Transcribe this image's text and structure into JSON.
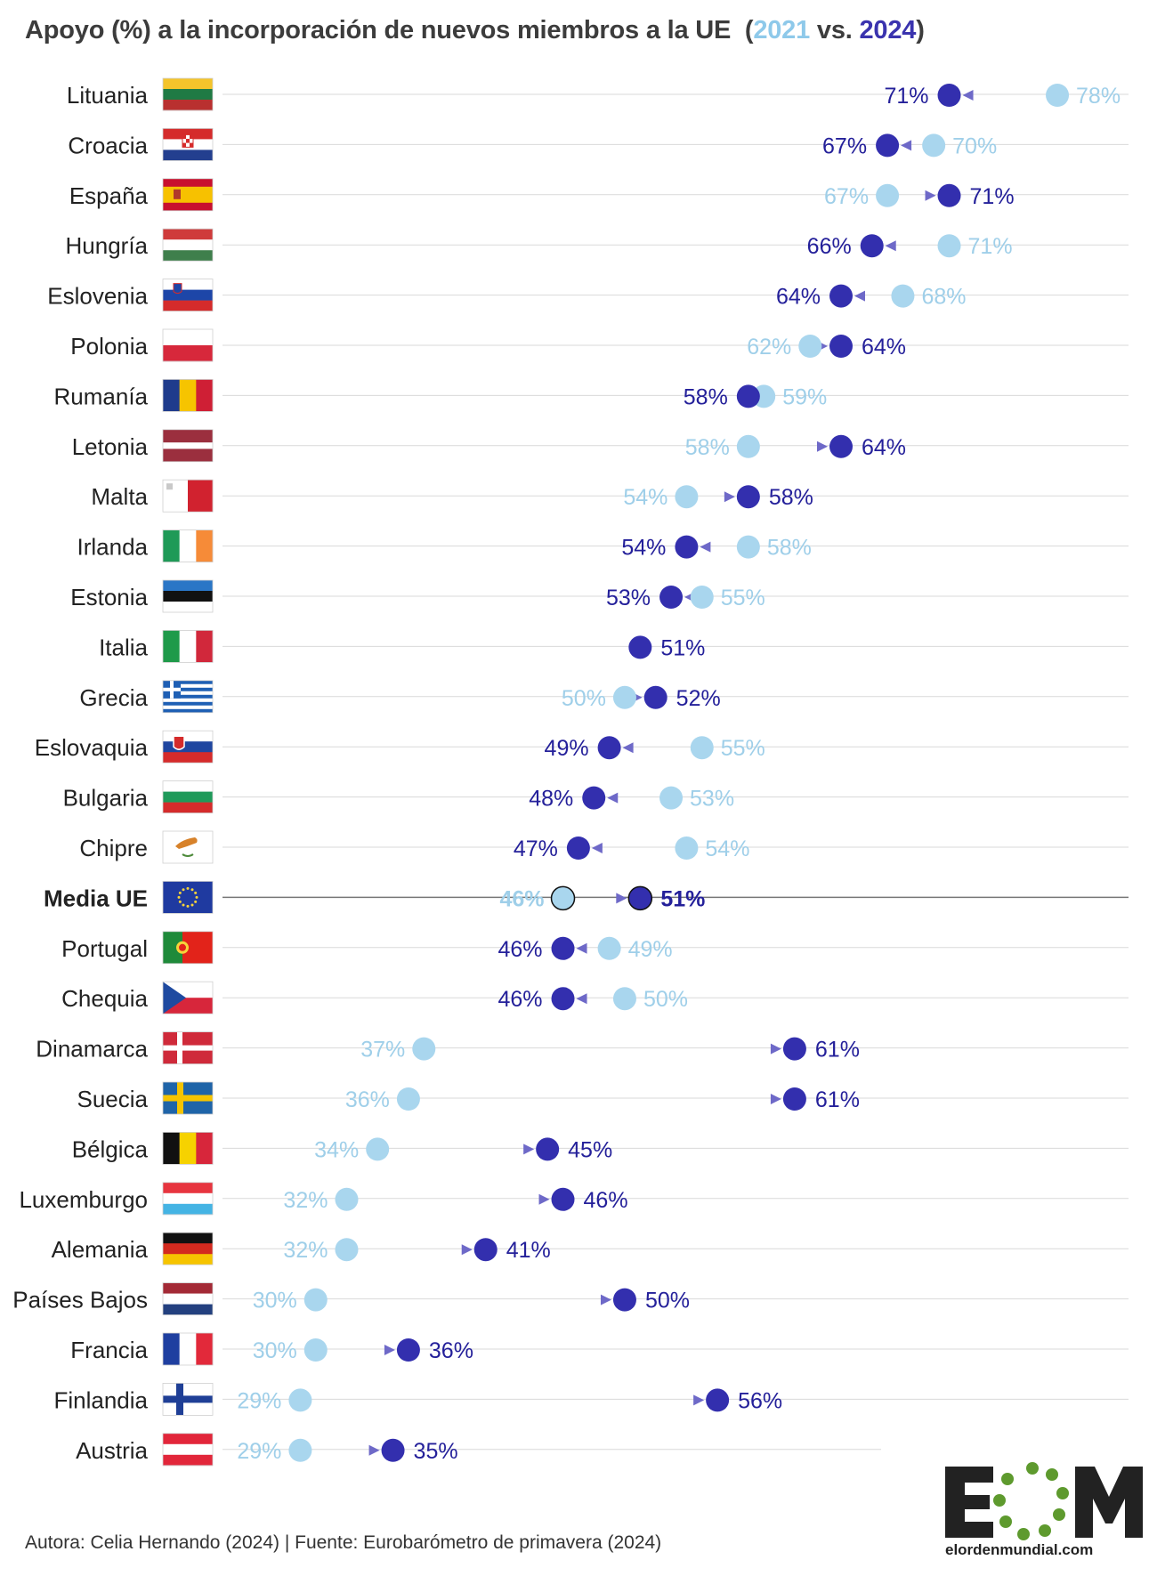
{
  "title": {
    "main": "Apoyo (%) a la incorporación de nuevos miembros a la UE",
    "paren_open": "(",
    "year_a": "2021",
    "vs": " vs. ",
    "year_b": "2024",
    "paren_close": ")"
  },
  "footer": "Autora: Celia Hernando (2024) | Fuente: Eurobarómetro de primavera (2024)",
  "logo": {
    "letters": "EOM",
    "url_text": "elordenmundial.com"
  },
  "colors": {
    "y2021": "#a9d6ee",
    "y2021_label": "#9fcfe9",
    "y2024": "#332fae",
    "y2024_label": "#24209a",
    "arrow": "#6e69c8",
    "grid": "#d9d9d9",
    "average_line": "#777777"
  },
  "chart_data": {
    "type": "dumbbell",
    "unit": "%",
    "series": [
      {
        "name": "2021"
      },
      {
        "name": "2024"
      }
    ],
    "rows": [
      {
        "country": "Lituania",
        "flag": "lithuania",
        "v2021": 78,
        "v2024": 71
      },
      {
        "country": "Croacia",
        "flag": "croatia",
        "v2021": 70,
        "v2024": 67
      },
      {
        "country": "España",
        "flag": "spain",
        "v2021": 67,
        "v2024": 71
      },
      {
        "country": "Hungría",
        "flag": "hungary",
        "v2021": 71,
        "v2024": 66
      },
      {
        "country": "Eslovenia",
        "flag": "slovenia",
        "v2021": 68,
        "v2024": 64
      },
      {
        "country": "Polonia",
        "flag": "poland",
        "v2021": 62,
        "v2024": 64
      },
      {
        "country": "Rumanía",
        "flag": "romania",
        "v2021": 59,
        "v2024": 58
      },
      {
        "country": "Letonia",
        "flag": "latvia",
        "v2021": 58,
        "v2024": 64
      },
      {
        "country": "Malta",
        "flag": "malta",
        "v2021": 54,
        "v2024": 58
      },
      {
        "country": "Irlanda",
        "flag": "ireland",
        "v2021": 58,
        "v2024": 54
      },
      {
        "country": "Estonia",
        "flag": "estonia",
        "v2021": 55,
        "v2024": 53
      },
      {
        "country": "Italia",
        "flag": "italy",
        "v2021": 51,
        "v2024": 51
      },
      {
        "country": "Grecia",
        "flag": "greece",
        "v2021": 50,
        "v2024": 52
      },
      {
        "country": "Eslovaquia",
        "flag": "slovakia",
        "v2021": 55,
        "v2024": 49
      },
      {
        "country": "Bulgaria",
        "flag": "bulgaria",
        "v2021": 53,
        "v2024": 48
      },
      {
        "country": "Chipre",
        "flag": "cyprus",
        "v2021": 54,
        "v2024": 47
      },
      {
        "country": "Media UE",
        "flag": "eu",
        "v2021": 46,
        "v2024": 51,
        "average": true
      },
      {
        "country": "Portugal",
        "flag": "portugal",
        "v2021": 49,
        "v2024": 46
      },
      {
        "country": "Chequia",
        "flag": "czechia",
        "v2021": 50,
        "v2024": 46
      },
      {
        "country": "Dinamarca",
        "flag": "denmark",
        "v2021": 37,
        "v2024": 61
      },
      {
        "country": "Suecia",
        "flag": "sweden",
        "v2021": 36,
        "v2024": 61
      },
      {
        "country": "Bélgica",
        "flag": "belgium",
        "v2021": 34,
        "v2024": 45
      },
      {
        "country": "Luxemburgo",
        "flag": "luxembourg",
        "v2021": 32,
        "v2024": 46
      },
      {
        "country": "Alemania",
        "flag": "germany",
        "v2021": 32,
        "v2024": 41
      },
      {
        "country": "Países Bajos",
        "flag": "netherlands",
        "v2021": 30,
        "v2024": 50
      },
      {
        "country": "Francia",
        "flag": "france",
        "v2021": 30,
        "v2024": 36
      },
      {
        "country": "Finlandia",
        "flag": "finland",
        "v2021": 29,
        "v2024": 56
      },
      {
        "country": "Austria",
        "flag": "austria",
        "v2021": 29,
        "v2024": 35
      }
    ]
  }
}
